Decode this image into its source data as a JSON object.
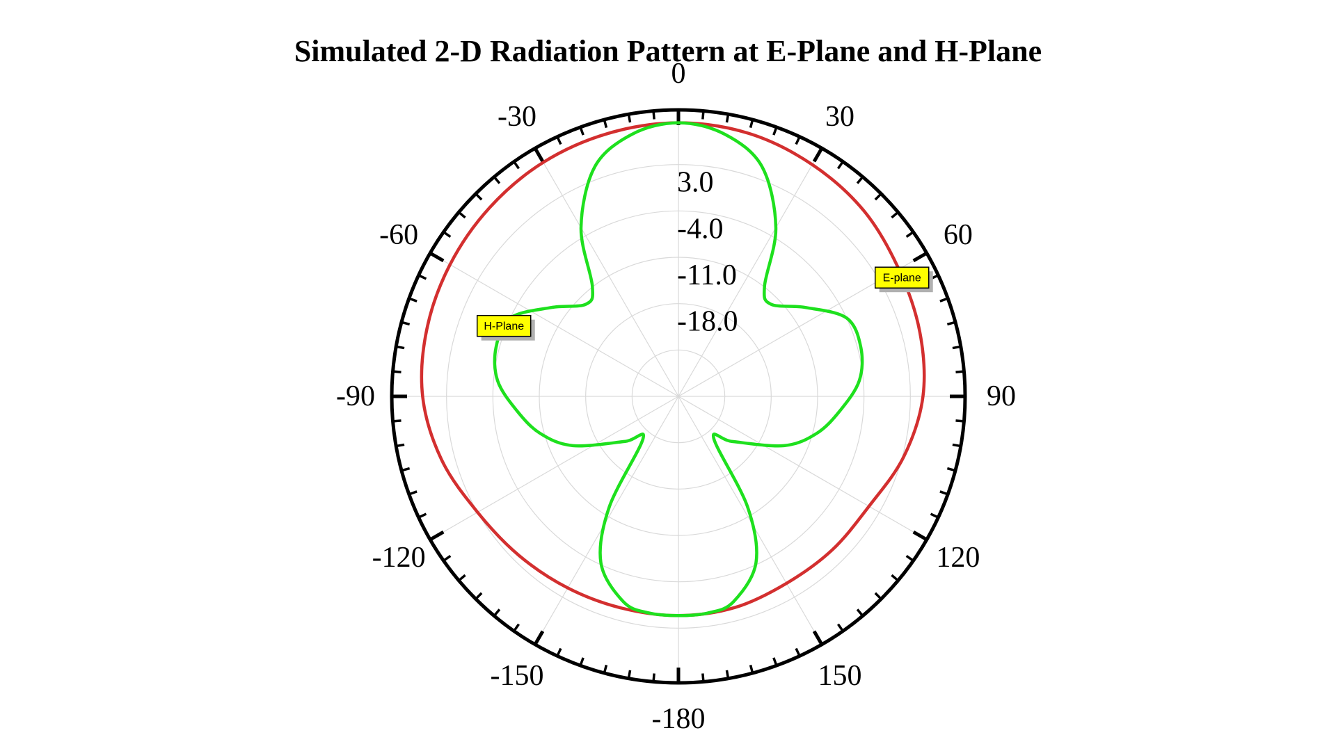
{
  "chart_data": {
    "type": "polar-line",
    "title": "Simulated 2-D Radiation Pattern at E-Plane and H-Plane",
    "angle_unit": "deg",
    "angle_ticks": [
      0,
      30,
      60,
      90,
      120,
      150,
      -180,
      -150,
      -120,
      -90,
      -60,
      -30
    ],
    "angle_tick_labels": [
      "0",
      "30",
      "60",
      "90",
      "120",
      "150",
      "-180",
      "-150",
      "-120",
      "-90",
      "-60",
      "-30"
    ],
    "radial_ticks": [
      -18.0,
      -11.0,
      -4.0,
      3.0
    ],
    "radial_tick_labels": [
      "-18.0",
      "-11.0",
      "-4.0",
      "3.0"
    ],
    "r_range": [
      -32,
      10
    ],
    "grid": true,
    "series": [
      {
        "name": "E-plane",
        "color": "#d32f2f",
        "theta": [
          0,
          15,
          30,
          45,
          60,
          75,
          90,
          105,
          120,
          135,
          150,
          165,
          180,
          -165,
          -150,
          -135,
          -120,
          -105,
          -90,
          -75,
          -60,
          -45,
          -30,
          -15
        ],
        "r": [
          9.3,
          9.1,
          8.4,
          7.6,
          6.4,
          5.7,
          4.9,
          3.2,
          1.2,
          0.8,
          0.6,
          1.0,
          1.1,
          1.1,
          1.4,
          2.0,
          3.0,
          5.0,
          6.6,
          7.3,
          7.8,
          8.3,
          8.8,
          9.1
        ]
      },
      {
        "name": "H-Plane",
        "color": "#1ee01e",
        "theta": [
          0,
          10,
          20,
          30,
          38,
          45,
          55,
          65,
          75,
          85,
          95,
          105,
          115,
          130,
          140,
          148,
          155,
          165,
          172,
          180,
          -172,
          -165,
          -155,
          -148,
          -140,
          -130,
          -115,
          -105,
          -95,
          -85,
          -75,
          -65,
          -55,
          -45,
          -38,
          -30,
          -20,
          -10
        ],
        "r": [
          9.3,
          8.2,
          4.9,
          -2.6,
          -10.9,
          -12.3,
          -8.6,
          -4.0,
          -3.5,
          -4.6,
          -7.5,
          -10.4,
          -14.4,
          -21.4,
          -23.7,
          -12.3,
          -4.3,
          0.1,
          1.0,
          1.1,
          1.0,
          0.1,
          -4.3,
          -12.3,
          -23.7,
          -21.4,
          -14.4,
          -10.4,
          -7.5,
          -4.6,
          -3.5,
          -4.0,
          -8.6,
          -12.3,
          -10.9,
          -2.6,
          4.9,
          8.2
        ]
      }
    ],
    "annotations": [
      {
        "text": "E-plane",
        "series": "E-plane",
        "theta": 62,
        "r": 6.2
      },
      {
        "text": "H-Plane",
        "series": "H-Plane",
        "theta": -68,
        "r": -3.6
      }
    ]
  }
}
